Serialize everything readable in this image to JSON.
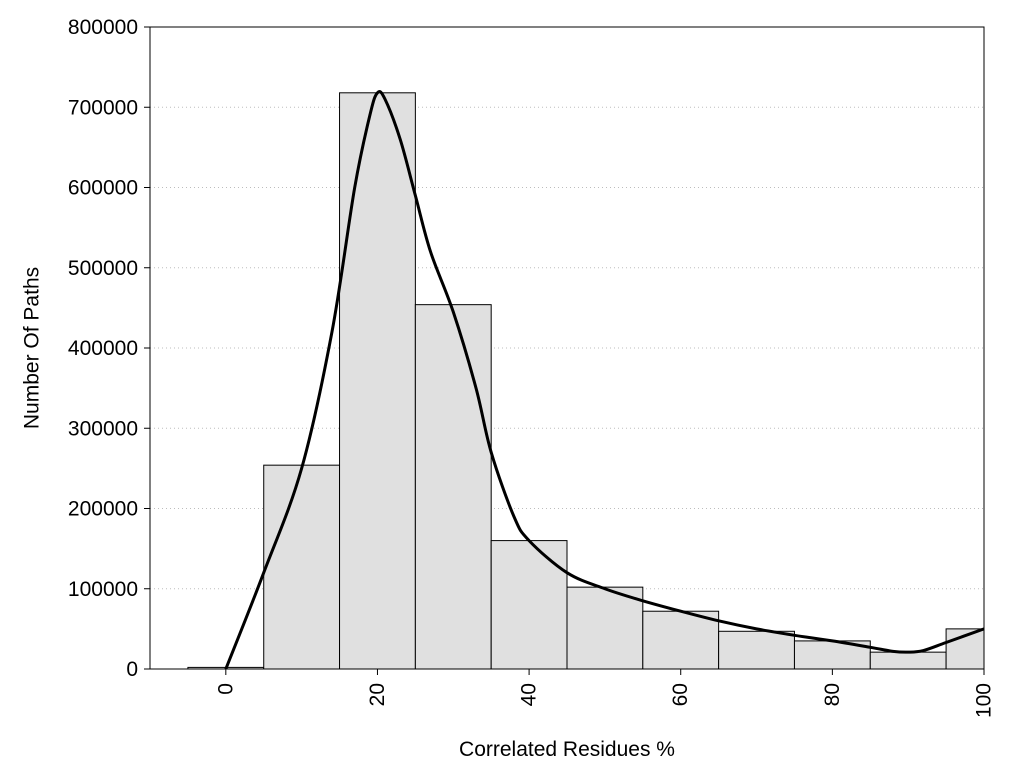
{
  "chart_data": {
    "type": "bar",
    "subtype": "histogram-with-curve",
    "xlabel": "Correlated Residues %",
    "ylabel": "Number Of Paths",
    "xlim": [
      -10,
      100
    ],
    "ylim": [
      0,
      800000
    ],
    "x_ticks": [
      0,
      20,
      40,
      60,
      80,
      100
    ],
    "x_tick_labels": [
      "0",
      "20",
      "40",
      "60",
      "80",
      "100"
    ],
    "y_ticks": [
      0,
      100000,
      200000,
      300000,
      400000,
      500000,
      600000,
      700000,
      800000
    ],
    "y_tick_labels": [
      "0",
      "100000",
      "200000",
      "300000",
      "400000",
      "500000",
      "600000",
      "700000",
      "800000"
    ],
    "bin_width": 10,
    "bars": [
      {
        "center": 0,
        "value": 2000
      },
      {
        "center": 10,
        "value": 254000
      },
      {
        "center": 20,
        "value": 718000
      },
      {
        "center": 30,
        "value": 454000
      },
      {
        "center": 40,
        "value": 160000
      },
      {
        "center": 50,
        "value": 102000
      },
      {
        "center": 60,
        "value": 72000
      },
      {
        "center": 70,
        "value": 47000
      },
      {
        "center": 80,
        "value": 35000
      },
      {
        "center": 90,
        "value": 21000
      },
      {
        "center": 100,
        "value": 50000
      }
    ],
    "curve": {
      "x": [
        0,
        5,
        10,
        14,
        17,
        19,
        20,
        21,
        23,
        25,
        27,
        30,
        33,
        35,
        38,
        40,
        45,
        50,
        55,
        60,
        65,
        70,
        75,
        80,
        85,
        88,
        90,
        92,
        95,
        100
      ],
      "y": [
        0,
        120000,
        250000,
        420000,
        600000,
        690000,
        718000,
        710000,
        660000,
        590000,
        520000,
        445000,
        350000,
        270000,
        190000,
        160000,
        120000,
        100000,
        85000,
        72000,
        60000,
        50000,
        42000,
        35000,
        27000,
        22000,
        21000,
        23000,
        33000,
        50000
      ]
    },
    "bar_fill": "#e0e0e0",
    "bar_stroke": "#000000",
    "curve_color": "#000000",
    "grid": "horizontal-dotted",
    "legend": "none"
  }
}
